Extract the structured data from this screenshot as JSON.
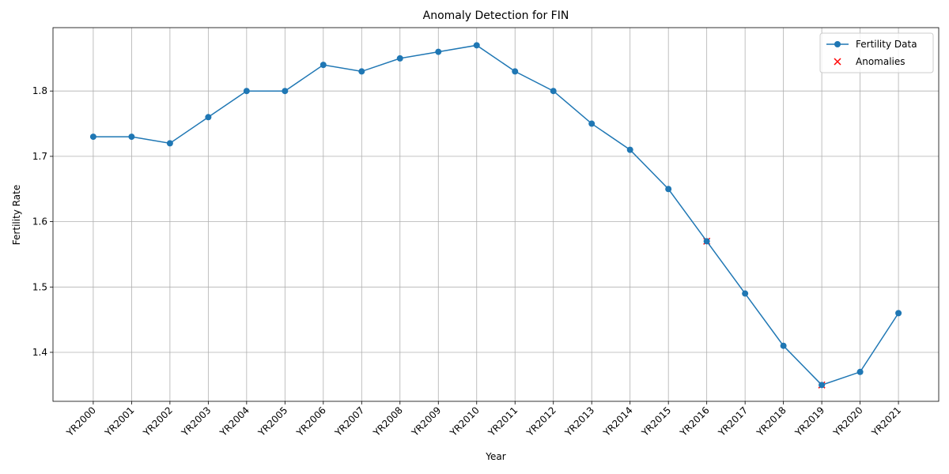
{
  "chart_data": {
    "type": "line",
    "title": "Anomaly Detection for FIN",
    "xlabel": "Year",
    "ylabel": "Fertility Rate",
    "categories": [
      "YR2000",
      "YR2001",
      "YR2002",
      "YR2003",
      "YR2004",
      "YR2005",
      "YR2006",
      "YR2007",
      "YR2008",
      "YR2009",
      "YR2010",
      "YR2011",
      "YR2012",
      "YR2013",
      "YR2014",
      "YR2015",
      "YR2016",
      "YR2017",
      "YR2018",
      "YR2019",
      "YR2020",
      "YR2021"
    ],
    "series": [
      {
        "name": "Fertility Data",
        "color": "#1f77b4",
        "values": [
          1.73,
          1.73,
          1.72,
          1.76,
          1.8,
          1.8,
          1.84,
          1.83,
          1.85,
          1.86,
          1.87,
          1.83,
          1.8,
          1.75,
          1.71,
          1.65,
          1.57,
          1.49,
          1.41,
          1.35,
          1.37,
          1.46
        ]
      },
      {
        "name": "Anomalies",
        "color": "#ff0000",
        "values": [
          null,
          null,
          null,
          null,
          null,
          null,
          null,
          null,
          null,
          null,
          null,
          null,
          null,
          null,
          null,
          null,
          1.57,
          null,
          null,
          1.35,
          null,
          null
        ]
      }
    ],
    "ylim": [
      1.325,
      1.897
    ],
    "yticks": [
      1.4,
      1.5,
      1.6,
      1.7,
      1.8
    ],
    "grid": true,
    "legend": "upper right"
  }
}
